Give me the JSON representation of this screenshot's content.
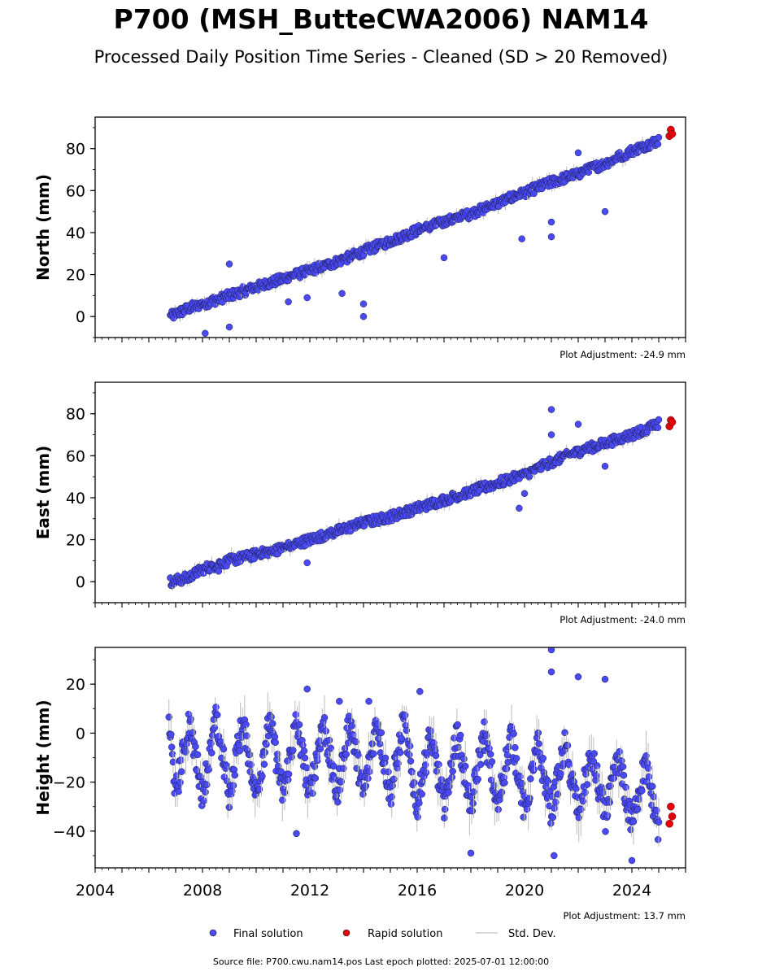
{
  "title": "P700 (MSH_ButteCWA2006) NAM14",
  "subtitle": "Processed Daily Position Time Series - Cleaned (SD > 20 Removed)",
  "footer": "Source file: P700.cwu.nam14.pos  Last epoch plotted: 2025-07-01 12:00:00",
  "legend": {
    "final": "Final solution",
    "rapid": "Rapid solution",
    "stddev": "Std. Dev."
  },
  "colors": {
    "final": "#4a4af5",
    "rapid": "#e8000b",
    "stddev": "#bbbbbb",
    "axis": "#000000"
  },
  "chart_data": [
    {
      "type": "scatter",
      "panel": "north",
      "ylabel": "North (mm)",
      "ylim": [
        -10,
        95
      ],
      "xlim": [
        2004.0,
        2026.0
      ],
      "yticks": [
        0,
        20,
        40,
        60,
        80
      ],
      "adjustment": "Plot Adjustment: -24.9 mm",
      "x": [
        2006.8,
        2007.5,
        2008.0,
        2009.0,
        2010.0,
        2011.0,
        2012.0,
        2013.0,
        2014.0,
        2015.0,
        2016.0,
        2017.0,
        2018.0,
        2019.0,
        2020.0,
        2021.0,
        2022.0,
        2023.0,
        2024.0,
        2025.0
      ],
      "y": [
        0,
        4,
        6,
        10,
        14,
        18,
        22,
        26,
        31,
        36,
        41,
        45,
        49,
        54,
        59,
        64,
        68,
        73,
        79,
        84
      ],
      "outliers_x": [
        2008.1,
        2009.0,
        2009.0,
        2011.2,
        2011.9,
        2013.2,
        2014.0,
        2014.0,
        2017.0,
        2019.9,
        2021.0,
        2021.0,
        2022.0,
        2023.0
      ],
      "outliers_y": [
        -8,
        25,
        -5,
        7,
        9,
        11,
        6,
        0,
        28,
        37,
        38,
        45,
        78,
        50
      ],
      "rapid_x": [
        2025.4,
        2025.45,
        2025.5
      ],
      "rapid_y": [
        86,
        89,
        87
      ]
    },
    {
      "type": "scatter",
      "panel": "east",
      "ylabel": "East (mm)",
      "ylim": [
        -10,
        95
      ],
      "xlim": [
        2004.0,
        2026.0
      ],
      "yticks": [
        0,
        20,
        40,
        60,
        80
      ],
      "adjustment": "Plot Adjustment: -24.0 mm",
      "x": [
        2006.8,
        2007.5,
        2008.0,
        2009.0,
        2010.0,
        2011.0,
        2012.0,
        2013.0,
        2014.0,
        2015.0,
        2016.0,
        2017.0,
        2018.0,
        2019.0,
        2020.0,
        2021.0,
        2022.0,
        2023.0,
        2024.0,
        2025.0
      ],
      "y": [
        0,
        2,
        6,
        10,
        13,
        16,
        20,
        24,
        28,
        31,
        35,
        39,
        43,
        47,
        51,
        57,
        62,
        66,
        70,
        75
      ],
      "outliers_x": [
        2008.6,
        2011.9,
        2019.8,
        2020.0,
        2021.0,
        2021.0,
        2022.0,
        2023.0
      ],
      "outliers_y": [
        5,
        9,
        35,
        42,
        82,
        70,
        75,
        55
      ],
      "rapid_x": [
        2025.4,
        2025.45,
        2025.5
      ],
      "rapid_y": [
        74,
        77,
        76
      ]
    },
    {
      "type": "scatter",
      "panel": "height",
      "ylabel": "Height (mm)",
      "ylim": [
        -55,
        35
      ],
      "xlim": [
        2004.0,
        2026.0
      ],
      "yticks": [
        -40,
        -20,
        0,
        20
      ],
      "xticks": [
        2004,
        2008,
        2012,
        2016,
        2020,
        2024
      ],
      "adjustment": "Plot Adjustment: 13.7 mm",
      "x": [
        2006.75,
        2007.0,
        2007.5,
        2008.0,
        2008.5,
        2009.0,
        2009.5,
        2010.0,
        2010.5,
        2011.0,
        2011.5,
        2012.0,
        2012.5,
        2013.0,
        2013.5,
        2014.0,
        2014.5,
        2015.0,
        2015.5,
        2016.0,
        2016.5,
        2017.0,
        2017.5,
        2018.0,
        2018.5,
        2019.0,
        2019.5,
        2020.0,
        2020.5,
        2021.0,
        2021.5,
        2022.0,
        2022.5,
        2023.0,
        2023.5,
        2024.0,
        2024.5,
        2025.0
      ],
      "y": [
        5,
        -25,
        5,
        -25,
        5,
        -25,
        5,
        -25,
        5,
        -25,
        5,
        -25,
        5,
        -25,
        5,
        -25,
        5,
        -25,
        5,
        -30,
        0,
        -30,
        0,
        -30,
        0,
        -30,
        0,
        -32,
        -5,
        -32,
        -5,
        -32,
        -8,
        -35,
        -10,
        -38,
        -12,
        -40
      ],
      "outliers_x": [
        2011.5,
        2011.9,
        2013.1,
        2014.2,
        2016.1,
        2018.0,
        2021.0,
        2021.0,
        2021.1,
        2022.0,
        2023.0,
        2024.0
      ],
      "outliers_y": [
        -41,
        18,
        13,
        13,
        17,
        -49,
        34,
        25,
        -50,
        23,
        22,
        -52
      ],
      "rapid_x": [
        2025.4,
        2025.45,
        2025.5
      ],
      "rapid_y": [
        -37,
        -30,
        -34
      ]
    }
  ]
}
